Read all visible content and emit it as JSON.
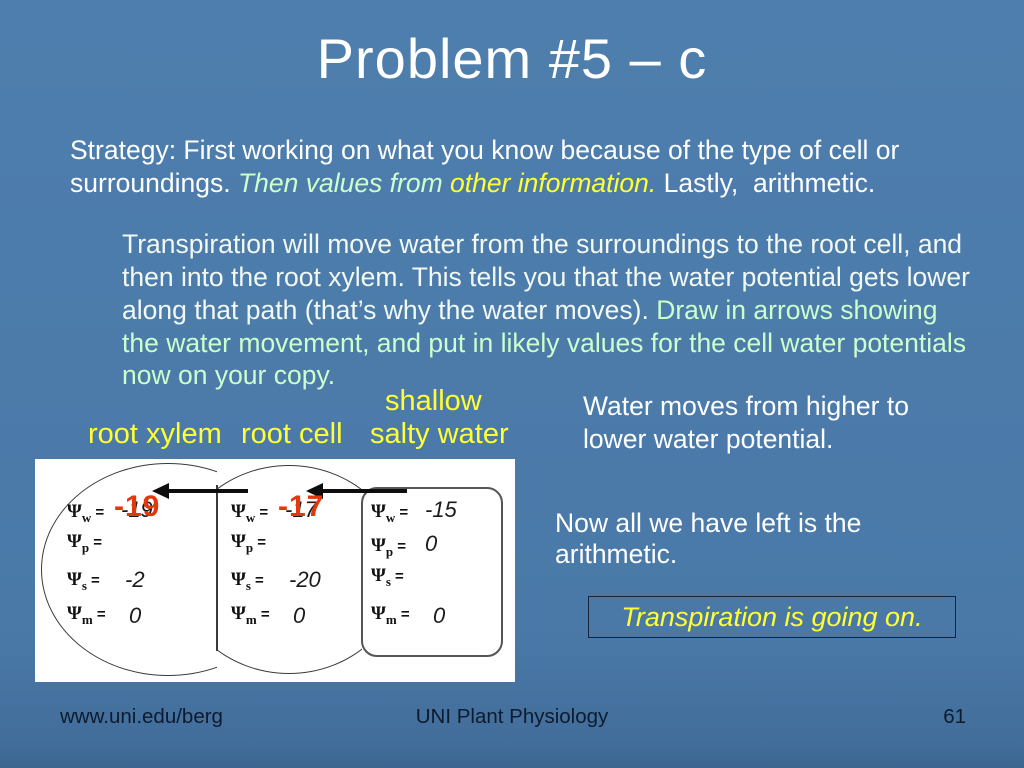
{
  "slide": {
    "title": "Problem #5 – c",
    "strategy": {
      "white1": "Strategy: First working on what you know because of the type of cell or surroundings. ",
      "green_italic": "Then values from ",
      "yellow_italic": "other information.",
      "white2": " Lastly,  arithmetic."
    },
    "paragraph": {
      "white": "Transpiration will move water from the surroundings to the root cell, and then into the root xylem. This tells you that the water potential gets lower along that path (that’s why the water moves). ",
      "green": "Draw in arrows showing the water movement, and put in likely values for the cell water potentials now on your copy."
    },
    "labels": {
      "shallow": "shallow",
      "salty_water": "salty water",
      "root_xylem": "root xylem",
      "root_cell": "root cell"
    },
    "notes": {
      "water_movement": "Water moves from higher to lower water potential.",
      "arithmetic": "Now all we have left is the arithmetic.",
      "transpiration_boxed": "Transpiration is going on."
    },
    "footer": {
      "left": "www.uni.edu/berg",
      "center": "UNI Plant Physiology",
      "page_number": "61"
    }
  },
  "diagram": {
    "eq": " = ",
    "arrow_direction": "left",
    "columns": [
      {
        "name": "root xylem",
        "rows": [
          {
            "sym": "Ψ",
            "sub": "w",
            "value": "-19",
            "red_annotation": true
          },
          {
            "sym": "Ψ",
            "sub": "p",
            "value": ""
          },
          {
            "sym": "Ψ",
            "sub": "s",
            "value": "-2"
          },
          {
            "sym": "Ψ",
            "sub": "m",
            "value": "0"
          }
        ]
      },
      {
        "name": "root cell",
        "rows": [
          {
            "sym": "Ψ",
            "sub": "w",
            "value": "-17",
            "red_annotation": true
          },
          {
            "sym": "Ψ",
            "sub": "p",
            "value": ""
          },
          {
            "sym": "Ψ",
            "sub": "s",
            "value": "-20"
          },
          {
            "sym": "Ψ",
            "sub": "m",
            "value": "0"
          }
        ]
      },
      {
        "name": "shallow salty water",
        "rows": [
          {
            "sym": "Ψ",
            "sub": "w",
            "value": "-15"
          },
          {
            "sym": "Ψ",
            "sub": "p",
            "value": "0"
          },
          {
            "sym": "Ψ",
            "sub": "s",
            "value": ""
          },
          {
            "sym": "Ψ",
            "sub": "m",
            "value": "0"
          }
        ]
      }
    ]
  },
  "colors": {
    "background": "#4a79a8",
    "title_text": "#ffffff",
    "body_text": "#ffffff",
    "mint_green": "#ccffcc",
    "yellow": "#ffff33",
    "red_annotation": "#e2380c",
    "footer_text": "#0d1b2e",
    "diagram_panel": "#ffffff"
  }
}
